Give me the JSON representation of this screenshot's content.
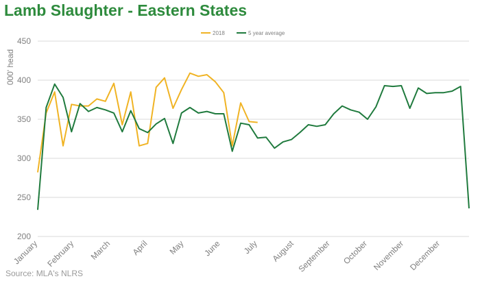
{
  "title": "Lamb Slaughter - Eastern States",
  "source": "Source: MLA's NLRS",
  "chart_data": {
    "type": "line",
    "title": "Lamb Slaughter - Eastern States",
    "ylabel": "000' head",
    "xlabel": "",
    "ylim": [
      200,
      450
    ],
    "yticks": [
      200,
      250,
      300,
      350,
      400,
      450
    ],
    "xlim": [
      1,
      52
    ],
    "month_labels": [
      {
        "label": "January",
        "week": 1
      },
      {
        "label": "February",
        "week": 5.3
      },
      {
        "label": "March",
        "week": 9.6
      },
      {
        "label": "April",
        "week": 14
      },
      {
        "label": "May",
        "week": 18.3
      },
      {
        "label": "June",
        "week": 22.6
      },
      {
        "label": "July",
        "week": 27
      },
      {
        "label": "August",
        "week": 31.3
      },
      {
        "label": "September",
        "week": 35.6
      },
      {
        "label": "October",
        "week": 40
      },
      {
        "label": "November",
        "week": 44.3
      },
      {
        "label": "December",
        "week": 48.6
      }
    ],
    "legend_position": "top-center",
    "grid": true,
    "series": [
      {
        "name": "2018",
        "color": "#f0b323",
        "x": [
          1,
          2,
          3,
          4,
          5,
          6,
          7,
          8,
          9,
          10,
          11,
          12,
          13,
          14,
          15,
          16,
          17,
          18,
          19,
          20,
          21,
          22,
          23,
          24,
          25,
          26,
          27
        ],
        "values": [
          282,
          358,
          385,
          316,
          369,
          367,
          367,
          376,
          373,
          396,
          343,
          385,
          316,
          319,
          391,
          403,
          364,
          388,
          409,
          405,
          407,
          398,
          384,
          316,
          371,
          347,
          346
        ]
      },
      {
        "name": "5 year average",
        "color": "#1f7a3d",
        "x": [
          1,
          2,
          3,
          4,
          5,
          6,
          7,
          8,
          9,
          10,
          11,
          12,
          13,
          14,
          15,
          16,
          17,
          18,
          19,
          20,
          21,
          22,
          23,
          24,
          25,
          26,
          27,
          28,
          29,
          30,
          31,
          32,
          33,
          34,
          35,
          36,
          37,
          38,
          39,
          40,
          41,
          42,
          43,
          44,
          45,
          46,
          47,
          48,
          49,
          50,
          51,
          52
        ],
        "values": [
          234,
          365,
          395,
          378,
          334,
          370,
          360,
          365,
          362,
          358,
          334,
          361,
          338,
          333,
          344,
          351,
          319,
          358,
          365,
          358,
          360,
          357,
          357,
          309,
          345,
          343,
          326,
          327,
          313,
          321,
          324,
          333,
          343,
          341,
          343,
          357,
          367,
          362,
          359,
          350,
          366,
          393,
          392,
          393,
          364,
          390,
          383,
          384,
          384,
          386,
          392,
          236
        ]
      }
    ]
  }
}
